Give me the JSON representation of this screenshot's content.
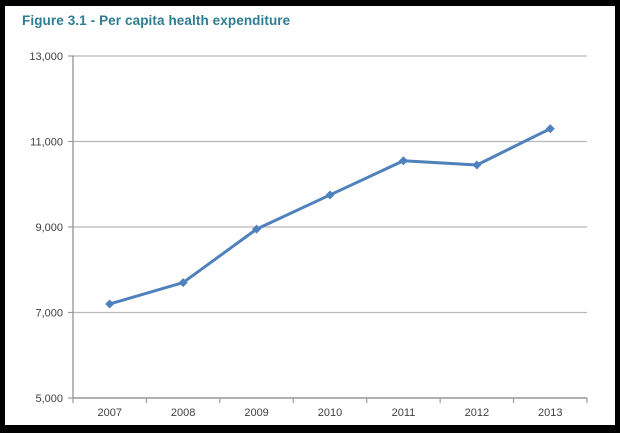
{
  "frame": {
    "border_color": "#000000",
    "background_color": "#ffffff"
  },
  "title_color": "#2e7c93",
  "chart_data": {
    "type": "line",
    "title": "Figure 3.1 - Per capita health expenditure",
    "categories": [
      "2007",
      "2008",
      "2009",
      "2010",
      "2011",
      "2012",
      "2013"
    ],
    "values": [
      7200,
      7700,
      8950,
      9750,
      10550,
      10450,
      11300
    ],
    "xlabel": "",
    "ylabel": "",
    "ylim": [
      5000,
      13000
    ],
    "yticks": [
      {
        "value": 5000,
        "label": "5,000"
      },
      {
        "value": 7000,
        "label": "7,000"
      },
      {
        "value": 9000,
        "label": "9,000"
      },
      {
        "value": 11000,
        "label": "11,000"
      },
      {
        "value": 13000,
        "label": "13,000"
      }
    ],
    "grid": true,
    "legend_position": "none",
    "line_color": "#4F81BD",
    "marker": "diamond",
    "axis_color": "#9b9b9b",
    "gridline_color": "#b8b8b8",
    "tick_label_color": "#3f3f3f"
  }
}
